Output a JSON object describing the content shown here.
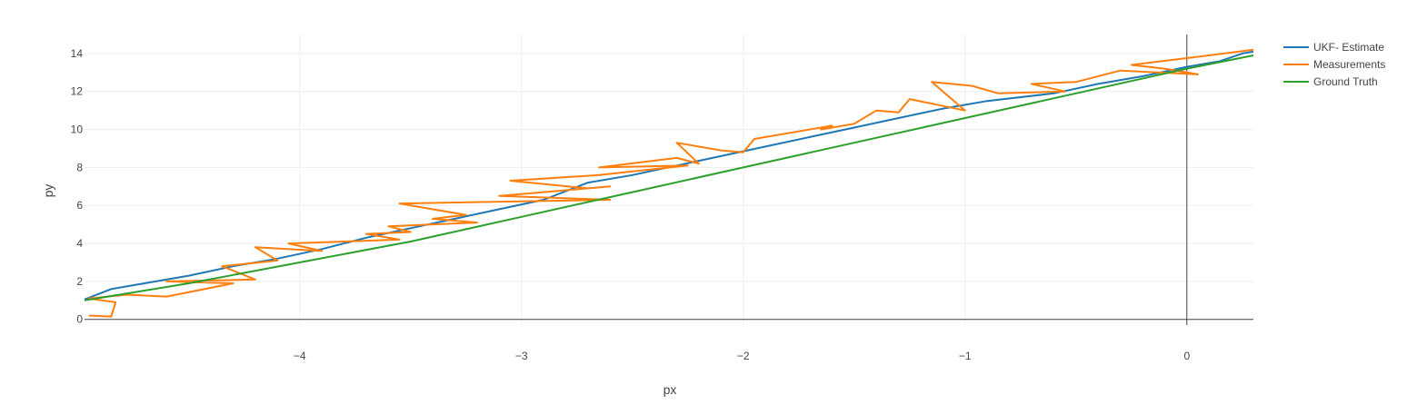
{
  "chart_data": {
    "type": "line",
    "xlabel": "px",
    "ylabel": "py",
    "xlim": [
      -4.97,
      0.3
    ],
    "ylim": [
      -0.3,
      15
    ],
    "x_ticks": [
      -4,
      -3,
      -2,
      -1,
      0
    ],
    "y_ticks": [
      0,
      2,
      4,
      6,
      8,
      10,
      12,
      14
    ],
    "x_tick_labels": [
      "−4",
      "−3",
      "−2",
      "−1",
      "0"
    ],
    "y_tick_labels": [
      "0",
      "2",
      "4",
      "6",
      "8",
      "10",
      "12",
      "14"
    ],
    "grid": true,
    "legend_position": "top-right",
    "series": [
      {
        "name": "UKF- Estimate",
        "color": "#1f77b4",
        "x": [
          -4.97,
          -4.85,
          -4.7,
          -4.5,
          -4.3,
          -4.1,
          -3.9,
          -3.7,
          -3.5,
          -3.3,
          -3.1,
          -2.9,
          -2.7,
          -2.5,
          -2.3,
          -2.1,
          -1.9,
          -1.7,
          -1.5,
          -1.3,
          -1.1,
          -0.9,
          -0.6,
          -0.4,
          -0.2,
          0,
          0.15,
          0.25,
          0.3
        ],
        "y": [
          1.05,
          1.6,
          1.9,
          2.3,
          2.8,
          3.2,
          3.7,
          4.3,
          4.8,
          5.3,
          5.8,
          6.3,
          7.2,
          7.6,
          8.1,
          8.6,
          9.1,
          9.6,
          10.1,
          10.6,
          11.1,
          11.5,
          11.9,
          12.4,
          12.8,
          13.3,
          13.6,
          14.0,
          14.1
        ]
      },
      {
        "name": "Measurements",
        "color": "#ff7f0e",
        "x": [
          -4.95,
          -4.85,
          -4.83,
          -4.95,
          -4.78,
          -4.6,
          -4.3,
          -4.6,
          -4.2,
          -4.35,
          -4.1,
          -4.2,
          -3.9,
          -4.05,
          -3.55,
          -3.7,
          -3.5,
          -3.6,
          -3.2,
          -3.4,
          -3.25,
          -3.55,
          -2.6,
          -3.1,
          -2.6,
          -2.7,
          -3.05,
          -2.65,
          -2.25,
          -2.65,
          -2.3,
          -2.2,
          -2.3,
          -2.1,
          -2.0,
          -1.95,
          -1.6,
          -1.65,
          -1.5,
          -1.4,
          -1.3,
          -1.25,
          -1.0,
          -1.15,
          -0.97,
          -0.85,
          -0.55,
          -0.7,
          -0.5,
          -0.3,
          0.05,
          -0.1,
          -0.25,
          0.1,
          0.3
        ],
        "y": [
          0.2,
          0.15,
          0.9,
          1.1,
          1.3,
          1.2,
          1.9,
          2.0,
          2.1,
          2.8,
          3.1,
          3.8,
          3.6,
          4.0,
          4.2,
          4.5,
          4.6,
          4.9,
          5.1,
          5.3,
          5.5,
          6.1,
          6.3,
          6.5,
          7.0,
          6.9,
          7.3,
          7.6,
          8.1,
          8.0,
          8.5,
          8.2,
          9.3,
          8.9,
          8.8,
          9.5,
          10.2,
          10.0,
          10.3,
          11.0,
          10.9,
          11.6,
          11.0,
          12.5,
          12.3,
          11.9,
          12.0,
          12.4,
          12.5,
          13.1,
          12.9,
          13.2,
          13.4,
          13.9,
          14.2
        ]
      },
      {
        "name": "Ground Truth",
        "color": "#2ca02c",
        "x": [
          -4.97,
          -4.5,
          -4.0,
          -3.5,
          -3.0,
          -2.5,
          -2.0,
          -1.5,
          -1.0,
          -0.5,
          0,
          0.3
        ],
        "y": [
          1.0,
          1.9,
          3.0,
          4.1,
          5.4,
          6.7,
          8.0,
          9.3,
          10.6,
          11.9,
          13.2,
          13.9
        ]
      }
    ]
  },
  "legend": {
    "items": [
      "UKF- Estimate",
      "Measurements",
      "Ground Truth"
    ]
  }
}
